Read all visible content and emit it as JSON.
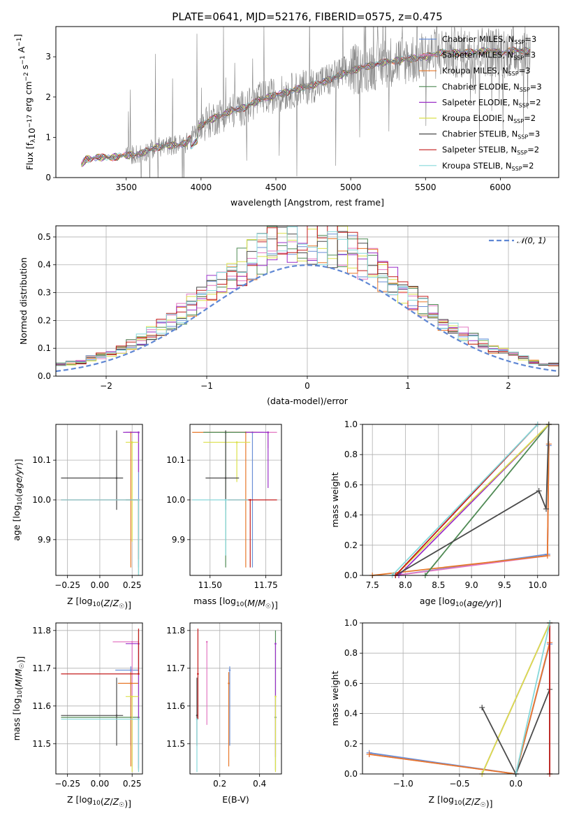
{
  "figure": {
    "title": "PLATE=0641, MJD=52176, FIBERID=0575, z=0.475"
  },
  "colors": {
    "Chabrier MILES": "#6a8fd6",
    "Salpeter MILES": "#e377c2",
    "Kroupa MILES": "#e8782a",
    "Chabrier ELODIE": "#4f8a54",
    "Salpeter ELODIE": "#9b30c8",
    "Kroupa ELODIE": "#dbe04a",
    "Chabrier STELIB": "#4a4a4a",
    "Salpeter STELIB": "#c41b1b",
    "Kroupa STELIB": "#86d8da",
    "data": "#808080",
    "gauss": "#5f87d4"
  },
  "chart_data": [
    {
      "id": "spectrum",
      "type": "line",
      "title": "PLATE=0641, MJD=52176, FIBERID=0575, z=0.475",
      "xlabel": "wavelength [Angstrom, rest frame]",
      "ylabel": "Flux [f_λ 10^-17 erg cm^-2 s^-1 A^-1]",
      "xlim": [
        3030,
        6390
      ],
      "ylim": [
        0,
        3.75
      ],
      "xticks": [
        "3500",
        "4000",
        "4500",
        "5000",
        "5500",
        "6000"
      ],
      "yticks": [
        "0",
        "1",
        "2",
        "3"
      ],
      "grid": false,
      "legend_position": "top-right",
      "legend": [
        "Chabrier MILES, N_SSP=3",
        "Salpeter MILES, N_SSP=3",
        "Kroupa MILES, N_SSP=3",
        "Chabrier ELODIE, N_SSP=3",
        "Salpeter ELODIE, N_SSP=2",
        "Kroupa ELODIE, N_SSP=2",
        "Chabrier STELIB, N_SSP=3",
        "Salpeter STELIB, N_SSP=2",
        "Kroupa STELIB, N_SSP=2"
      ],
      "continuum": [
        [
          3200,
          0.3
        ],
        [
          3230,
          0.45
        ],
        [
          3300,
          0.5
        ],
        [
          3400,
          0.5
        ],
        [
          3500,
          0.55
        ],
        [
          3600,
          0.6
        ],
        [
          3700,
          0.75
        ],
        [
          3800,
          0.8
        ],
        [
          3900,
          0.85
        ],
        [
          4000,
          1.3
        ],
        [
          4100,
          1.5
        ],
        [
          4200,
          1.65
        ],
        [
          4300,
          1.75
        ],
        [
          4400,
          1.95
        ],
        [
          4500,
          2.05
        ],
        [
          4600,
          2.15
        ],
        [
          4700,
          2.25
        ],
        [
          4800,
          2.35
        ],
        [
          4900,
          2.5
        ],
        [
          5000,
          2.65
        ],
        [
          5100,
          2.75
        ],
        [
          5200,
          2.85
        ],
        [
          5300,
          2.9
        ],
        [
          5400,
          2.95
        ],
        [
          5500,
          3.0
        ],
        [
          5600,
          3.1
        ],
        [
          5700,
          3.1
        ],
        [
          5800,
          3.1
        ],
        [
          5900,
          3.15
        ],
        [
          6000,
          3.1
        ],
        [
          6100,
          3.15
        ],
        [
          6200,
          3.15
        ]
      ]
    },
    {
      "id": "residuals",
      "type": "line",
      "xlabel": "(data-model)/error",
      "ylabel": "Normed distribution",
      "xlim": [
        -2.5,
        2.5
      ],
      "ylim": [
        0,
        0.54
      ],
      "xticks": [
        "−2",
        "−1",
        "0",
        "1",
        "2"
      ],
      "yticks": [
        "0.0",
        "0.1",
        "0.2",
        "0.3",
        "0.4",
        "0.5"
      ],
      "grid": true,
      "legend_position": "top-right",
      "legend": [
        "𝒩(0, 1)"
      ],
      "bin_width": 0.1,
      "reference": "N(0,1)"
    },
    {
      "id": "age-vs-Z",
      "type": "scatter",
      "xlabel": "Z [log10(Z/Z☉)]",
      "ylabel": "age [log10(age/yr)]",
      "xlim": [
        -0.34,
        0.33
      ],
      "ylim": [
        9.81,
        10.19
      ],
      "xticks": [
        "−0.25",
        "0.00",
        "0.25"
      ],
      "yticks": [
        "9.9",
        "10.0",
        "10.1"
      ],
      "grid": true,
      "points": [
        {
          "model": "Chabrier MILES",
          "x": 0.3,
          "y": 10.17,
          "xerr": [
            0.1,
            0
          ],
          "yerr": [
            0.34,
            0
          ]
        },
        {
          "model": "Salpeter MILES",
          "x": 0.3,
          "y": 10.17,
          "xerr": [
            0.1,
            0
          ],
          "yerr": [
            0.1,
            0
          ]
        },
        {
          "model": "Kroupa MILES",
          "x": 0.24,
          "y": 10.17,
          "xerr": [
            0,
            0
          ],
          "yerr": [
            0.34,
            0
          ]
        },
        {
          "model": "Chabrier ELODIE",
          "x": 0.3,
          "y": 10.0,
          "xerr": [
            0.1,
            0
          ],
          "yerr": [
            0.2,
            0
          ]
        },
        {
          "model": "Salpeter ELODIE",
          "x": 0.3,
          "y": 10.17,
          "xerr": [
            0.12,
            0
          ],
          "yerr": [
            0.1,
            0
          ]
        },
        {
          "model": "Kroupa ELODIE",
          "x": 0.25,
          "y": 10.145,
          "xerr": [
            0.05,
            0.05
          ],
          "yerr": [
            0.25,
            0
          ]
        },
        {
          "model": "Chabrier STELIB",
          "x": 0.13,
          "y": 10.055,
          "xerr": [
            0.43,
            0.05
          ],
          "yerr": [
            0.08,
            0.12
          ]
        },
        {
          "model": "Salpeter STELIB",
          "x": 0.3,
          "y": 10.0,
          "xerr": [
            0.6,
            0
          ],
          "yerr": [
            0.15,
            0
          ]
        },
        {
          "model": "Kroupa STELIB",
          "x": 0.3,
          "y": 10.0,
          "xerr": [
            0.6,
            0
          ],
          "yerr": [
            0.2,
            0
          ]
        }
      ]
    },
    {
      "id": "age-vs-mass",
      "type": "scatter",
      "xlabel": "mass [log10(M/M☉)]",
      "ylabel": "",
      "xlim": [
        11.41,
        11.82
      ],
      "ylim": [
        9.81,
        10.19
      ],
      "xticks": [
        "11.50",
        "11.75"
      ],
      "yticks": [
        "9.9",
        "10.0",
        "10.1"
      ],
      "grid": true,
      "points": [
        {
          "model": "Chabrier MILES",
          "x": 11.69,
          "y": 10.17,
          "xerr": [
            0.12,
            0.05
          ],
          "yerr": [
            0.34,
            0
          ]
        },
        {
          "model": "Salpeter MILES",
          "x": 11.76,
          "y": 10.17,
          "xerr": [
            0.18,
            0.04
          ],
          "yerr": [
            0.04,
            0
          ]
        },
        {
          "model": "Kroupa MILES",
          "x": 11.66,
          "y": 10.17,
          "xerr": [
            0.24,
            0.05
          ],
          "yerr": [
            0.34,
            0
          ]
        },
        {
          "model": "Chabrier ELODIE",
          "x": 11.57,
          "y": 10.17,
          "xerr": [
            0.1,
            0.12
          ],
          "yerr": [
            0.34,
            0
          ]
        },
        {
          "model": "Salpeter ELODIE",
          "x": 11.76,
          "y": 10.17,
          "xerr": [
            0.1,
            0
          ],
          "yerr": [
            0.14,
            0
          ]
        },
        {
          "model": "Kroupa ELODIE",
          "x": 11.62,
          "y": 10.145,
          "xerr": [
            0.15,
            0.06
          ],
          "yerr": [
            0.1,
            0
          ]
        },
        {
          "model": "Chabrier STELIB",
          "x": 11.57,
          "y": 10.055,
          "xerr": [
            0.09,
            0.06
          ],
          "yerr": [
            0.08,
            0.12
          ]
        },
        {
          "model": "Salpeter STELIB",
          "x": 11.68,
          "y": 10.0,
          "xerr": [
            0.1,
            0.12
          ],
          "yerr": [
            0.17,
            0
          ]
        },
        {
          "model": "Kroupa STELIB",
          "x": 11.57,
          "y": 10.0,
          "xerr": [
            0.15,
            0.1
          ],
          "yerr": [
            0.14,
            0
          ]
        }
      ]
    },
    {
      "id": "weight-vs-age",
      "type": "line",
      "xlabel": "age [log10(age/yr)]",
      "ylabel": "mass weight",
      "xlim": [
        7.35,
        10.32
      ],
      "ylim": [
        0,
        1.0
      ],
      "xticks": [
        "7.5",
        "8.0",
        "8.5",
        "9.0",
        "9.5",
        "10.0"
      ],
      "yticks": [
        "0.0",
        "0.2",
        "0.4",
        "0.6",
        "0.8",
        "1.0"
      ],
      "grid": true,
      "series": [
        {
          "model": "Chabrier MILES",
          "x": [
            7.85,
            10.15,
            10.17
          ],
          "y": [
            0.0,
            0.14,
            0.86
          ]
        },
        {
          "model": "Salpeter MILES",
          "x": [
            7.85,
            10.15,
            10.17
          ],
          "y": [
            0.0,
            0.13,
            0.87
          ]
        },
        {
          "model": "Kroupa MILES",
          "x": [
            7.5,
            10.15,
            10.17
          ],
          "y": [
            0.0,
            0.13,
            0.87
          ]
        },
        {
          "model": "Chabrier ELODIE",
          "x": [
            8.3,
            10.17
          ],
          "y": [
            0.0,
            1.0
          ]
        },
        {
          "model": "Salpeter ELODIE",
          "x": [
            7.9,
            10.17
          ],
          "y": [
            0.0,
            1.0
          ]
        },
        {
          "model": "Kroupa ELODIE",
          "x": [
            7.85,
            10.17
          ],
          "y": [
            0.0,
            1.0
          ]
        },
        {
          "model": "Chabrier STELIB",
          "x": [
            7.85,
            10.02,
            10.13,
            10.17
          ],
          "y": [
            0.0,
            0.56,
            0.44,
            1.0
          ]
        },
        {
          "model": "Salpeter STELIB",
          "x": [
            7.85,
            10.0
          ],
          "y": [
            0.0,
            1.0
          ]
        },
        {
          "model": "Kroupa STELIB",
          "x": [
            7.8,
            10.0
          ],
          "y": [
            0.0,
            1.0
          ]
        }
      ]
    },
    {
      "id": "mass-vs-Z",
      "type": "scatter",
      "xlabel": "Z [log10(Z/Z☉)]",
      "ylabel": "mass [log10(M/M☉)]",
      "xlim": [
        -0.34,
        0.33
      ],
      "ylim": [
        11.42,
        11.82
      ],
      "xticks": [
        "−0.25",
        "0.00",
        "0.25"
      ],
      "yticks": [
        "11.5",
        "11.6",
        "11.7",
        "11.8"
      ],
      "grid": true,
      "points": [
        {
          "model": "Chabrier MILES",
          "x": 0.24,
          "y": 11.695,
          "xerr": [
            0.12,
            0.06
          ],
          "yerr": [
            0.2,
            0.01
          ]
        },
        {
          "model": "Salpeter MILES",
          "x": 0.25,
          "y": 11.77,
          "xerr": [
            0.15,
            0.05
          ],
          "yerr": [
            0.33,
            0
          ]
        },
        {
          "model": "Kroupa MILES",
          "x": 0.24,
          "y": 11.66,
          "xerr": [
            0.1,
            0.06
          ],
          "yerr": [
            0.22,
            0.03
          ]
        },
        {
          "model": "Chabrier ELODIE",
          "x": 0.3,
          "y": 11.57,
          "xerr": [
            0.6,
            0
          ],
          "yerr": [
            0.14,
            0.23
          ]
        },
        {
          "model": "Salpeter ELODIE",
          "x": 0.3,
          "y": 11.765,
          "xerr": [
            0.1,
            0
          ],
          "yerr": [
            0.33,
            0
          ]
        },
        {
          "model": "Kroupa ELODIE",
          "x": 0.25,
          "y": 11.625,
          "xerr": [
            0.05,
            0.05
          ],
          "yerr": [
            0.2,
            0
          ]
        },
        {
          "model": "Chabrier STELIB",
          "x": 0.13,
          "y": 11.575,
          "xerr": [
            0.43,
            0.05
          ],
          "yerr": [
            0.08,
            0.1
          ]
        },
        {
          "model": "Salpeter STELIB",
          "x": 0.3,
          "y": 11.685,
          "xerr": [
            0.6,
            0
          ],
          "yerr": [
            0.0,
            0.12
          ]
        },
        {
          "model": "Kroupa STELIB",
          "x": 0.3,
          "y": 11.565,
          "xerr": [
            0.6,
            0
          ],
          "yerr": [
            0.14,
            0
          ]
        }
      ]
    },
    {
      "id": "mass-vs-EBV",
      "type": "scatter",
      "xlabel": "E(B-V)",
      "ylabel": "",
      "xlim": [
        0.05,
        0.51
      ],
      "ylim": [
        11.42,
        11.82
      ],
      "xticks": [
        "0.2",
        "0.4"
      ],
      "yticks": [
        "11.5",
        "11.6",
        "11.7",
        "11.8"
      ],
      "grid": true,
      "points": [
        {
          "model": "Chabrier MILES",
          "x": 0.25,
          "y": 11.695,
          "yerr": [
            0.2,
            0.01
          ]
        },
        {
          "model": "Salpeter MILES",
          "x": 0.135,
          "y": 11.77,
          "yerr": [
            0.22,
            0
          ]
        },
        {
          "model": "Kroupa MILES",
          "x": 0.245,
          "y": 11.66,
          "yerr": [
            0.22,
            0.03
          ]
        },
        {
          "model": "Chabrier ELODIE",
          "x": 0.48,
          "y": 11.57,
          "yerr": [
            0.14,
            0.23
          ]
        },
        {
          "model": "Salpeter ELODIE",
          "x": 0.48,
          "y": 11.765,
          "yerr": [
            0.3,
            0
          ]
        },
        {
          "model": "Kroupa ELODIE",
          "x": 0.48,
          "y": 11.625,
          "yerr": [
            0.2,
            0
          ]
        },
        {
          "model": "Chabrier STELIB",
          "x": 0.085,
          "y": 11.575,
          "yerr": [
            0.08,
            0.1
          ]
        },
        {
          "model": "Salpeter STELIB",
          "x": 0.09,
          "y": 11.685,
          "yerr": [
            0.12,
            0.12
          ]
        },
        {
          "model": "Kroupa STELIB",
          "x": 0.085,
          "y": 11.565,
          "yerr": [
            0.14,
            0
          ]
        }
      ]
    },
    {
      "id": "weight-vs-Z",
      "type": "line",
      "xlabel": "Z [log10(Z/Z☉)]",
      "ylabel": "mass weight",
      "xlim": [
        -1.36,
        0.38
      ],
      "ylim": [
        0,
        1.0
      ],
      "xticks": [
        "−1.0",
        "−0.5",
        "0.0"
      ],
      "yticks": [
        "0.0",
        "0.2",
        "0.4",
        "0.6",
        "0.8",
        "1.0"
      ],
      "grid": true,
      "series": [
        {
          "model": "Chabrier MILES",
          "x": [
            -1.3,
            0.0,
            0.3
          ],
          "y": [
            0.14,
            0.0,
            0.86
          ]
        },
        {
          "model": "Salpeter MILES",
          "x": [
            -1.3,
            0.0,
            0.3
          ],
          "y": [
            0.13,
            0.0,
            0.87
          ]
        },
        {
          "model": "Kroupa MILES",
          "x": [
            -1.3,
            0.0,
            0.3
          ],
          "y": [
            0.13,
            0.0,
            0.87
          ]
        },
        {
          "model": "Chabrier ELODIE",
          "x": [
            0.3,
            0.3
          ],
          "y": [
            0.0,
            1.0
          ]
        },
        {
          "model": "Salpeter ELODIE",
          "x": [
            -0.3,
            0.3
          ],
          "y": [
            0.0,
            1.0
          ]
        },
        {
          "model": "Kroupa ELODIE",
          "x": [
            -0.3,
            0.3
          ],
          "y": [
            0.0,
            1.0
          ]
        },
        {
          "model": "Chabrier STELIB",
          "x": [
            -0.3,
            0.0,
            0.3
          ],
          "y": [
            0.44,
            0.0,
            0.56
          ]
        },
        {
          "model": "Salpeter STELIB",
          "x": [
            0.3,
            0.3
          ],
          "y": [
            0.0,
            1.0
          ]
        },
        {
          "model": "Kroupa STELIB",
          "x": [
            0.0,
            0.3
          ],
          "y": [
            0.0,
            1.0
          ]
        }
      ]
    }
  ]
}
